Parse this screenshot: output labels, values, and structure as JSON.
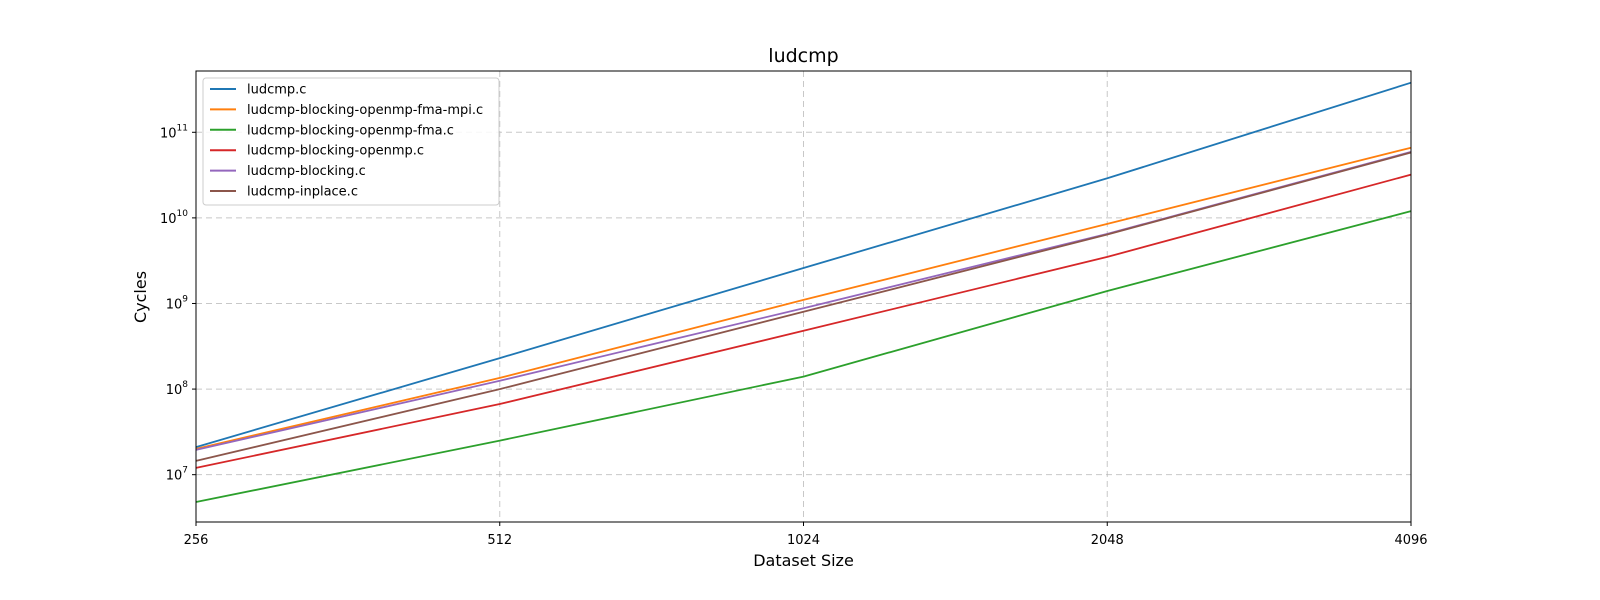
{
  "chart_data": {
    "type": "line",
    "title": "ludcmp",
    "xlabel": "Dataset Size",
    "ylabel": "Cycles",
    "x": [
      256,
      512,
      1024,
      2048,
      4096
    ],
    "x_tick_labels": [
      "256",
      "512",
      "1024",
      "2048",
      "4096"
    ],
    "xlim": [
      256,
      4096
    ],
    "yscale": "log",
    "ylim": [
      2800000.0,
      520000000000.0
    ],
    "y_ticks": [
      {
        "value": 10000000.0,
        "base": "10",
        "exp": "7"
      },
      {
        "value": 100000000.0,
        "base": "10",
        "exp": "8"
      },
      {
        "value": 1000000000.0,
        "base": "10",
        "exp": "9"
      },
      {
        "value": 10000000000.0,
        "base": "10",
        "exp": "10"
      },
      {
        "value": 100000000000.0,
        "base": "10",
        "exp": "11"
      }
    ],
    "grid": true,
    "legend_position": "top-left",
    "series": [
      {
        "name": "ludcmp.c",
        "color": "#1f77b4",
        "values": [
          21000000.0,
          230000000.0,
          2600000000.0,
          29000000000.0,
          380000000000.0
        ]
      },
      {
        "name": "ludcmp-blocking-openmp-fma-mpi.c",
        "color": "#ff7f0e",
        "values": [
          20000000.0,
          135000000.0,
          1100000000.0,
          8500000000.0,
          66000000000.0
        ]
      },
      {
        "name": "ludcmp-blocking-openmp-fma.c",
        "color": "#2ca02c",
        "values": [
          4800000.0,
          25000000.0,
          140000000.0,
          1400000000.0,
          12000000000.0
        ]
      },
      {
        "name": "ludcmp-blocking-openmp.c",
        "color": "#d62728",
        "values": [
          12000000.0,
          67000000.0,
          480000000.0,
          3500000000.0,
          32000000000.0
        ]
      },
      {
        "name": "ludcmp-blocking.c",
        "color": "#9467bd",
        "values": [
          19500000.0,
          125000000.0,
          880000000.0,
          6500000000.0,
          59000000000.0
        ]
      },
      {
        "name": "ludcmp-inplace.c",
        "color": "#8c564b",
        "values": [
          14500000.0,
          100000000.0,
          800000000.0,
          6400000000.0,
          58000000000.0
        ]
      }
    ]
  }
}
